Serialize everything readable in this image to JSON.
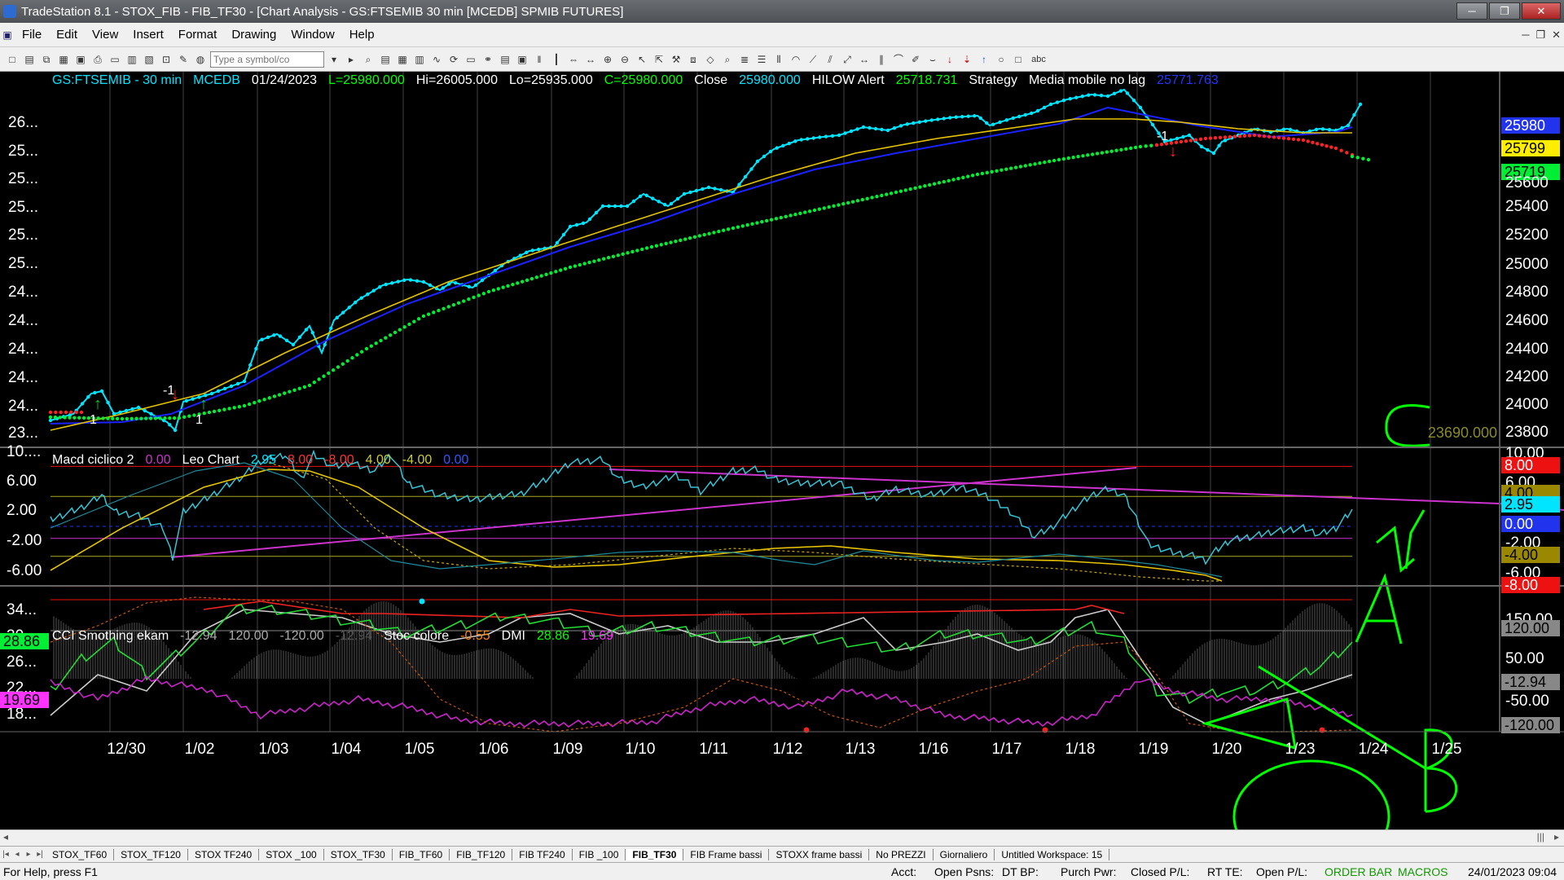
{
  "window": {
    "title": "TradeStation 8.1 - STOX_FIB - FIB_TF30 - [Chart Analysis - GS:FTSEMIB  30 min  [MCEDB] SPMIB FUTURES]",
    "min": "─",
    "max": "❐",
    "close": "✕"
  },
  "menu": [
    "File",
    "Edit",
    "View",
    "Insert",
    "Format",
    "Drawing",
    "Window",
    "Help"
  ],
  "toolbar": {
    "symbol_placeholder": "Type a symbol/co",
    "text_tool": "abc"
  },
  "header_line": [
    {
      "t": "GS:FTSEMIB - 30 min",
      "c": "#00e5ff"
    },
    {
      "t": "MCEDB",
      "c": "#00e5ff"
    },
    {
      "t": "01/24/2023",
      "c": "#ffffff"
    },
    {
      "t": "L=25980.000",
      "c": "#00ff00"
    },
    {
      "t": "Hi=26005.000",
      "c": "#ffffff"
    },
    {
      "t": "Lo=25935.000",
      "c": "#ffffff"
    },
    {
      "t": "C=25980.000",
      "c": "#00ff00"
    },
    {
      "t": "Close",
      "c": "#ffffff"
    },
    {
      "t": "25980.000",
      "c": "#00e5ff"
    },
    {
      "t": "HILOW Alert",
      "c": "#ffffff"
    },
    {
      "t": "25718.731",
      "c": "#00ff00"
    },
    {
      "t": "Strategy",
      "c": "#ffffff"
    },
    {
      "t": "Media mobile no lag",
      "c": "#ffffff"
    },
    {
      "t": "25771.763",
      "c": "#2233ff"
    }
  ],
  "panel2_header": [
    {
      "t": "Macd ciclico 2",
      "c": "#ffffff"
    },
    {
      "t": "0.00",
      "c": "#cc33cc"
    },
    {
      "t": "Leo Chart",
      "c": "#ffffff"
    },
    {
      "t": "2.95",
      "c": "#00e5ff"
    },
    {
      "t": "8.00",
      "c": "#ff3333"
    },
    {
      "t": "-8.00",
      "c": "#ff3333"
    },
    {
      "t": "4.00",
      "c": "#cccc33"
    },
    {
      "t": "-4.00",
      "c": "#cccc33"
    },
    {
      "t": "0.00",
      "c": "#3355ff"
    }
  ],
  "panel3_header": [
    {
      "t": "CCI Smothing ekam",
      "c": "#ffffff"
    },
    {
      "t": "-12.94",
      "c": "#aaaaaa"
    },
    {
      "t": "120.00",
      "c": "#aaaaaa"
    },
    {
      "t": "-120.00",
      "c": "#aaaaaa"
    },
    {
      "t": "-12.94",
      "c": "#555555"
    },
    {
      "t": "Stoc colore",
      "c": "#ffffff"
    },
    {
      "t": "-0.55",
      "c": "#ff8800"
    },
    {
      "t": "DMI",
      "c": "#ffffff"
    },
    {
      "t": "28.86",
      "c": "#00ff00"
    },
    {
      "t": "19.69",
      "c": "#ff33ff"
    }
  ],
  "price_axis": [
    "26...",
    "25...",
    "25...",
    "25...",
    "25...",
    "25...",
    "24...",
    "24...",
    "24...",
    "24...",
    "24...",
    "23..."
  ],
  "price_axis_right": [
    "25980",
    "25799",
    "25719",
    "25600",
    "25400",
    "25200",
    "25000",
    "24800",
    "24600",
    "24400",
    "24200",
    "24000",
    "23800"
  ],
  "price_far_label": "23690.000",
  "macd_axis_left": [
    "10....",
    "6.00",
    "2.00",
    "-2.00",
    "-6.00"
  ],
  "macd_axis_right": [
    "10.00",
    "8.00",
    "6.00",
    "4.00",
    "2.95",
    "0.00",
    "-2.00",
    "-4.00",
    "-6.00",
    "-8.00"
  ],
  "cci_axis_left": [
    "34...",
    "30...",
    "26...",
    "22...",
    "18..."
  ],
  "cci_axis_right": [
    "150.00",
    "120.00",
    "50.00",
    "-12.94",
    "-50.00",
    "-120.00"
  ],
  "cci_left_badges": [
    "28.86",
    "19.69"
  ],
  "dates": [
    "12/30",
    "1/02",
    "1/03",
    "1/04",
    "1/05",
    "1/06",
    "1/09",
    "1/10",
    "1/11",
    "1/12",
    "1/13",
    "1/16",
    "1/17",
    "1/18",
    "1/19",
    "1/20",
    "1/23",
    "1/24",
    "1/25"
  ],
  "signals": [
    "-1",
    "-1",
    "1",
    "1"
  ],
  "tabs": [
    "STOX_TF60",
    "STOX_TF120",
    "STOX TF240",
    "STOX _100",
    "STOX_TF30",
    "FIB_TF60",
    "FIB_TF120",
    "FIB TF240",
    "FIB _100",
    "FIB_TF30",
    "FIB Frame bassi",
    "STOXX frame bassi",
    "No PREZZI",
    "Giornaliero",
    "Untitled Workspace: 15"
  ],
  "active_tab": "FIB_TF30",
  "status": {
    "help": "For Help, press F1",
    "acct": "Acct:",
    "open_psns": "Open Psns:",
    "dt_bp": "DT BP:",
    "purch_pwr": "Purch Pwr:",
    "closed_pl": "Closed P/L:",
    "rt_te": "RT TE:",
    "open_pl": "Open P/L:",
    "order_bar": "ORDER BAR",
    "macros": "MACROS",
    "datetime": "24/01/2023 09:04"
  },
  "colors": {
    "price": "#00e5ff",
    "ma_blue": "#1a22ff",
    "ma_yellow": "#e6c400",
    "green_dots": "#00ee33",
    "red_dots": "#ff2222",
    "magenta": "#cc33cc",
    "annot": "#00ff00"
  }
}
